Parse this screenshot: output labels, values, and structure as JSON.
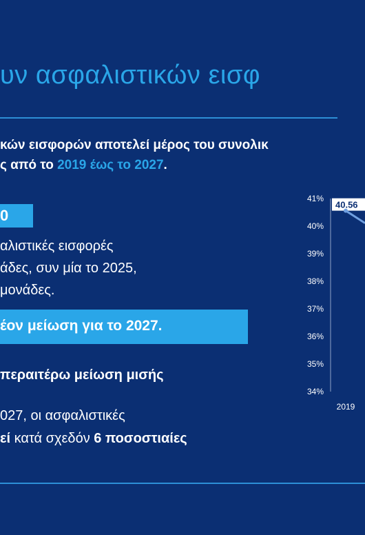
{
  "slide": {
    "title": "υν ασφαλιστικών εισφ",
    "intro_line1": "κών εισφορών αποτελεί μέρος του συνολικ",
    "intro_line2_pre": "ς από το ",
    "intro_line2_hl": "2019 έως το 2027",
    "intro_line2_post": ".",
    "box1_text": "0",
    "para1": "αλιστικές εισφορές",
    "para2": "άδες, συν μία το 2025,",
    "para3": "μονάδες.",
    "box2_text": "έον μείωση για το 2027.",
    "sub1": "περαιτέρω μείωση μισής",
    "sub2": "027, οι ασφαλιστικές",
    "sub3_bold1": "εί",
    "sub3_mid": " κατά σχεδόν ",
    "sub3_bold2": "6 ποσοστιαίες"
  },
  "colors": {
    "background": "#0b2f73",
    "accent": "#2aa6e8",
    "rule": "#2d8fd6",
    "text": "#ffffff"
  },
  "chart_data": {
    "type": "line",
    "x": [
      "2019"
    ],
    "series": [
      {
        "values": [
          40.56
        ]
      }
    ],
    "data_labels": [
      "40.56"
    ],
    "ylim": [
      34,
      41
    ],
    "yticks": [
      "34%",
      "35%",
      "36%",
      "37%",
      "38%",
      "39%",
      "40%",
      "41%"
    ],
    "xlabel": "",
    "ylabel": "",
    "grid": false
  }
}
